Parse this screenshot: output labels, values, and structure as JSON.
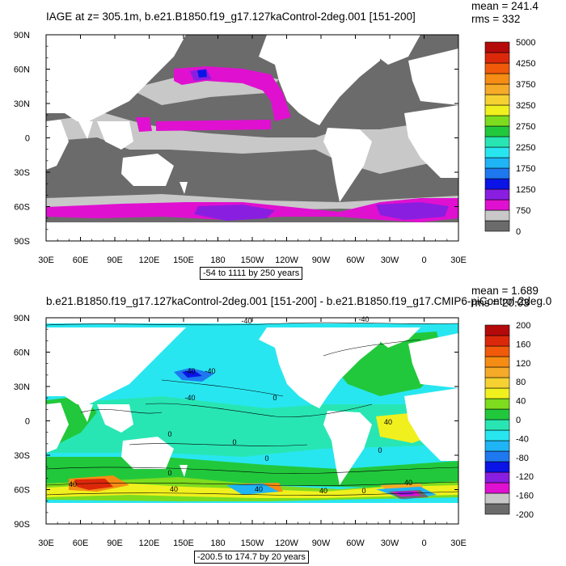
{
  "chart_data": [
    {
      "type": "heatmap",
      "title": "IAGE at z= 305.1m, b.e21.B1850.f19_g17.127kaControl-2deg.001 [151-200]",
      "mean_text": "mean = 241.4",
      "rms_text": "rms = 332",
      "range_text": "-54 to 1111 by 250 years",
      "x_ticks": [
        "30E",
        "60E",
        "90E",
        "120E",
        "150E",
        "180",
        "150W",
        "120W",
        "90W",
        "60W",
        "30W",
        "0",
        "30E"
      ],
      "y_ticks": [
        "90N",
        "60N",
        "30N",
        "0",
        "30S",
        "60S",
        "90S"
      ],
      "colorbar": {
        "labels": [
          "0",
          "750",
          "1250",
          "1750",
          "2250",
          "2750",
          "3250",
          "3750",
          "4250",
          "5000"
        ],
        "colors": [
          "#6b6b6b",
          "#c8c8c8",
          "#e010d0",
          "#8a1ee0",
          "#0a14e6",
          "#1e78f0",
          "#1eb4f5",
          "#28e6f0",
          "#28e6b4",
          "#22c83c",
          "#7ddc1e",
          "#f0f01e",
          "#f5d232",
          "#f5aa28",
          "#f58c14",
          "#f05a0a",
          "#dc280a",
          "#b40a0a"
        ]
      }
    },
    {
      "type": "heatmap",
      "title": "b.e21.B1850.f19_g17.127kaControl-2deg.001 [151-200] - b.e21.B1850.f19_g17.CMIP6-piControl-2deg.0",
      "mean_text": "mean = 1.689",
      "rms_text": "rms = 20.03",
      "range_text": "-200.5 to 174.7 by 20 years",
      "x_ticks": [
        "30E",
        "60E",
        "90E",
        "120E",
        "150E",
        "180",
        "150W",
        "120W",
        "90W",
        "60W",
        "30W",
        "0",
        "30E"
      ],
      "y_ticks": [
        "90N",
        "60N",
        "30N",
        "0",
        "30S",
        "60S",
        "90S"
      ],
      "contour_labels": [
        "-40",
        "-40",
        "-40",
        "-40",
        "-40",
        "0",
        "0",
        "0",
        "0",
        "0",
        "0",
        "0",
        "40",
        "40",
        "40",
        "40",
        "40",
        "40"
      ],
      "colorbar": {
        "labels": [
          "-200",
          "-160",
          "-120",
          "-80",
          "-40",
          "0",
          "40",
          "80",
          "120",
          "160",
          "200"
        ],
        "colors": [
          "#6b6b6b",
          "#c8c8c8",
          "#e010d0",
          "#8a1ee0",
          "#0a14e6",
          "#1e78f0",
          "#1eb4f5",
          "#28e6f0",
          "#28e6b4",
          "#22c83c",
          "#7ddc1e",
          "#f0f01e",
          "#f5d232",
          "#f5aa28",
          "#f58c14",
          "#f05a0a",
          "#dc280a",
          "#b40a0a"
        ]
      }
    }
  ]
}
